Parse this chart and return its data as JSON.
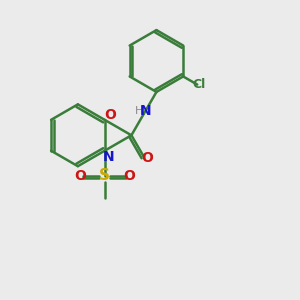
{
  "bg_color": "#ebebeb",
  "bond_color": "#3a7d3a",
  "n_color": "#1515cc",
  "o_color": "#cc1515",
  "s_color": "#ccaa00",
  "cl_color": "#3a7d3a",
  "h_color": "#888888",
  "figure_size": [
    3.0,
    3.0
  ],
  "dpi": 100,
  "xlim": [
    0,
    10
  ],
  "ylim": [
    0,
    10
  ]
}
